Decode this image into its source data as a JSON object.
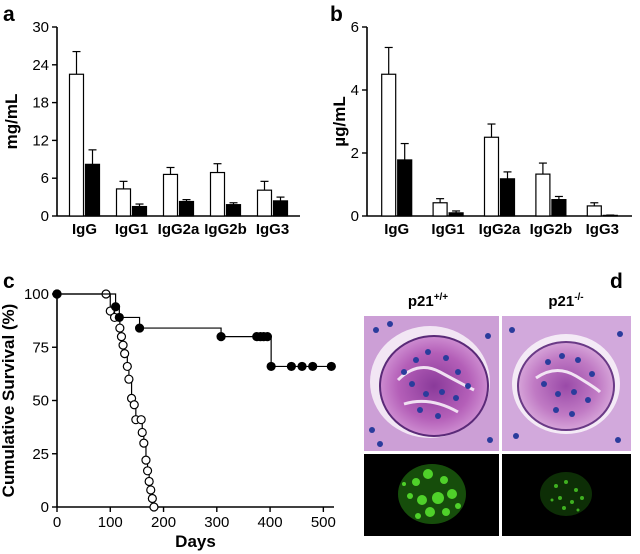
{
  "panel_labels": [
    "a",
    "b",
    "c",
    "d"
  ],
  "chart_data": [
    {
      "panel": "a",
      "type": "bar",
      "ylabel": "mg/mL",
      "ylim": [
        0,
        30
      ],
      "yticks": [
        0,
        6,
        12,
        18,
        24,
        30
      ],
      "categories": [
        "IgG",
        "IgG1",
        "IgG2a",
        "IgG2b",
        "IgG3"
      ],
      "series": [
        {
          "fill": "white",
          "values": [
            22.5,
            4.3,
            6.6,
            6.9,
            4.1
          ],
          "errors": [
            3.6,
            1.2,
            1.1,
            1.4,
            1.4
          ]
        },
        {
          "fill": "black",
          "values": [
            8.2,
            1.5,
            2.3,
            1.8,
            2.4
          ],
          "errors": [
            2.3,
            0.4,
            0.3,
            0.3,
            0.6
          ]
        }
      ]
    },
    {
      "panel": "b",
      "type": "bar",
      "ylabel": "µg/mL",
      "ylim": [
        0,
        6
      ],
      "yticks": [
        0,
        2,
        4,
        6
      ],
      "categories": [
        "IgG",
        "IgG1",
        "IgG2a",
        "IgG2b",
        "IgG3"
      ],
      "series": [
        {
          "fill": "white",
          "values": [
            4.5,
            0.42,
            2.5,
            1.33,
            0.32
          ],
          "errors": [
            0.85,
            0.13,
            0.42,
            0.35,
            0.1
          ]
        },
        {
          "fill": "black",
          "values": [
            1.78,
            0.1,
            1.18,
            0.52,
            0.02
          ],
          "errors": [
            0.52,
            0.06,
            0.22,
            0.1,
            0.01
          ]
        }
      ]
    },
    {
      "panel": "c",
      "type": "line",
      "step": true,
      "xlabel": "Days",
      "ylabel": "Cumulative Survival (%)",
      "xlim": [
        0,
        520
      ],
      "ylim": [
        0,
        100
      ],
      "xticks": [
        0,
        100,
        200,
        300,
        400,
        500
      ],
      "yticks": [
        0,
        25,
        50,
        75,
        100
      ],
      "series": [
        {
          "marker": "open-circle",
          "x": [
            0,
            92,
            100,
            108,
            118,
            121,
            124,
            127,
            132,
            135,
            140,
            145,
            148,
            158,
            160,
            163,
            167,
            170,
            173,
            176,
            179,
            182
          ],
          "y": [
            100,
            100,
            92,
            89,
            84,
            80,
            76,
            72,
            66,
            60,
            51,
            48,
            41,
            41,
            35,
            30,
            22,
            17,
            12,
            8,
            4,
            0
          ]
        },
        {
          "marker": "filled-circle",
          "x": [
            0,
            110,
            117,
            155,
            308,
            375,
            382,
            388,
            395,
            402,
            440,
            460,
            480,
            515
          ],
          "y": [
            100,
            94,
            89,
            84,
            80,
            80,
            80,
            80,
            80,
            66,
            66,
            66,
            66,
            66
          ]
        }
      ]
    }
  ],
  "panel_d": {
    "labels": [
      {
        "base": "p21",
        "sup": "+/+"
      },
      {
        "base": "p21",
        "sup": "-/-"
      }
    ]
  }
}
